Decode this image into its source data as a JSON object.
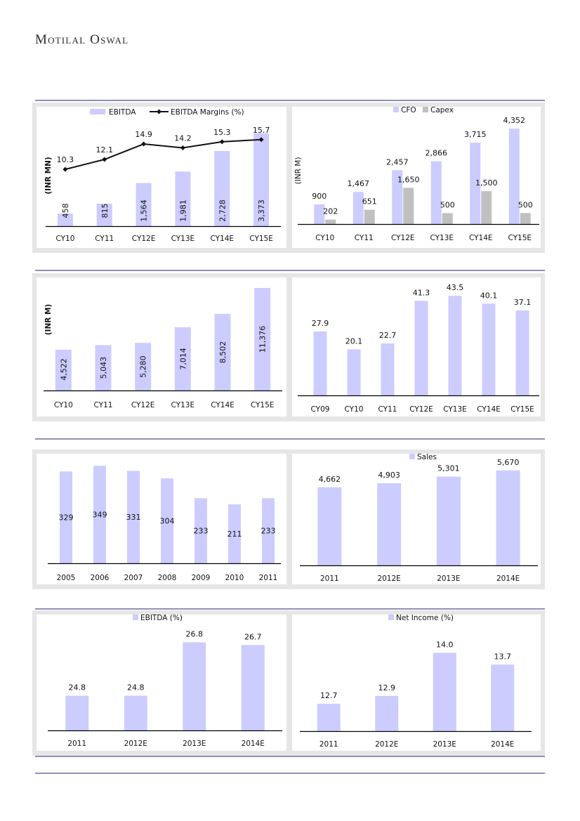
{
  "header": {
    "brand": "Motilal Oswal"
  },
  "colors": {
    "bar": "#ccccff",
    "capex": "#c0c0c0",
    "line": "#111111",
    "rule": "#22226e",
    "panel": "#e6e6e6"
  },
  "chart_data": [
    {
      "type": "bar+line",
      "categories": [
        "CY10",
        "CY11",
        "CY12E",
        "CY13E",
        "CY14E",
        "CY15E"
      ],
      "series": [
        {
          "name": "EBITDA",
          "type": "bar",
          "values": [
            458,
            815,
            1564,
            1981,
            2728,
            3373
          ],
          "labels": [
            "458",
            "815",
            "1,564",
            "1,981",
            "2,728",
            "3,373"
          ]
        },
        {
          "name": "EBITDA Margins (%)",
          "type": "line",
          "axis": "secondary",
          "values": [
            10.3,
            12.1,
            14.9,
            14.2,
            15.3,
            15.7
          ],
          "labels": [
            "10.3",
            "12.1",
            "14.9",
            "14.2",
            "15.3",
            "15.7"
          ]
        }
      ],
      "ylabel": "(INR MN)",
      "ylim": [
        0,
        4000
      ],
      "y2lim": [
        0,
        20
      ],
      "legend": "top",
      "grid": false
    },
    {
      "type": "bar",
      "categories": [
        "CY10",
        "CY11",
        "CY12E",
        "CY13E",
        "CY14E",
        "CY15E"
      ],
      "series": [
        {
          "name": "CFO",
          "values": [
            900,
            1467,
            2457,
            2866,
            3715,
            4352
          ],
          "labels": [
            "900",
            "1,467",
            "2,457",
            "2,866",
            "3,715",
            "4,352"
          ]
        },
        {
          "name": "Capex",
          "values": [
            202,
            651,
            1650,
            500,
            1500,
            500
          ],
          "labels": [
            "202",
            "651",
            "1,650",
            "500",
            "1,500",
            "500"
          ]
        }
      ],
      "ylabel": "(INR M)",
      "ylim": [
        0,
        5000
      ],
      "legend": "top",
      "grid": false
    },
    {
      "type": "bar",
      "categories": [
        "CY10",
        "CY11",
        "CY12E",
        "CY13E",
        "CY14E",
        "CY15E"
      ],
      "series": [
        {
          "values": [
            4522,
            5043,
            5280,
            7014,
            8502,
            11376
          ],
          "labels": [
            "4,522",
            "5,043",
            "5,280",
            "7,014",
            "8,502",
            "11,376"
          ]
        }
      ],
      "ylabel": "(INR M)",
      "ylim": [
        0,
        12000
      ],
      "grid": false
    },
    {
      "type": "bar",
      "categories": [
        "CY09",
        "CY10",
        "CY11",
        "CY12E",
        "CY13E",
        "CY14E",
        "CY15E"
      ],
      "series": [
        {
          "values": [
            27.9,
            20.1,
            22.7,
            41.3,
            43.5,
            40.1,
            37.1
          ],
          "labels": [
            "27.9",
            "20.1",
            "22.7",
            "41.3",
            "43.5",
            "40.1",
            "37.1"
          ]
        }
      ],
      "ylim": [
        0,
        50
      ],
      "grid": false
    },
    {
      "type": "bar",
      "categories": [
        "2005",
        "2006",
        "2007",
        "2008",
        "2009",
        "2010",
        "2011"
      ],
      "series": [
        {
          "values": [
            329,
            349,
            331,
            304,
            233,
            211,
            233
          ],
          "labels": [
            "329",
            "349",
            "331",
            "304",
            "233",
            "211",
            "233"
          ]
        }
      ],
      "ylim": [
        0,
        400
      ],
      "grid": false
    },
    {
      "type": "bar",
      "categories": [
        "2011",
        "2012E",
        "2013E",
        "2014E"
      ],
      "series": [
        {
          "name": "Sales",
          "values": [
            4662,
            4903,
            5301,
            5670
          ],
          "labels": [
            "4,662",
            "4,903",
            "5,301",
            "5,670"
          ]
        }
      ],
      "ylim": [
        0,
        6500
      ],
      "legend": "top",
      "grid": false
    },
    {
      "type": "bar",
      "categories": [
        "2011",
        "2012E",
        "2013E",
        "2014E"
      ],
      "series": [
        {
          "name": "EBITDA (%)",
          "values": [
            24.8,
            24.8,
            26.8,
            26.7
          ],
          "labels": [
            "24.8",
            "24.8",
            "26.8",
            "26.7"
          ]
        }
      ],
      "ylim": [
        23.5,
        27.5
      ],
      "legend": "top",
      "grid": false
    },
    {
      "type": "bar",
      "categories": [
        "2011",
        "2012E",
        "2013E",
        "2014E"
      ],
      "series": [
        {
          "name": "Net Income (%)",
          "values": [
            12.7,
            12.9,
            14.0,
            13.7
          ],
          "labels": [
            "12.7",
            "12.9",
            "14.0",
            "13.7"
          ]
        }
      ],
      "ylim": [
        12,
        14.8
      ],
      "legend": "top",
      "grid": false
    }
  ]
}
